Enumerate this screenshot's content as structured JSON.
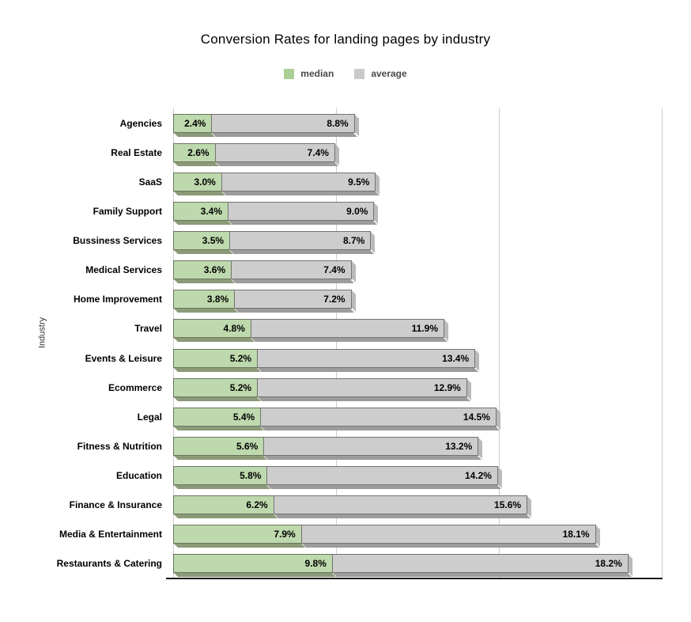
{
  "title": "Conversion Rates for landing pages by industry",
  "legend": {
    "position": "top",
    "items": [
      {
        "label": "median",
        "color": "#abd096"
      },
      {
        "label": "average",
        "color": "#c9c9c9"
      }
    ]
  },
  "colors": {
    "median_fill": "#bed9ad",
    "median_border": "#6a755d",
    "median_shadow": "#8b9a77",
    "average_fill": "#cdcdcd",
    "average_border": "#737373",
    "average_shadow": "#9c9c9c",
    "gridline": "#cccccc",
    "axis": "#1a1a1a"
  },
  "chart_data": {
    "type": "bar",
    "orientation": "horizontal",
    "stacked": true,
    "title": "Conversion Rates for landing pages by industry",
    "xlabel": "",
    "ylabel": "Industry",
    "xlim": [
      0,
      30
    ],
    "grid_x": [
      0,
      10,
      20,
      30
    ],
    "x_tick_labels_visible": false,
    "legend_position": "top",
    "categories": [
      "Agencies",
      "Real Estate",
      "SaaS",
      "Family Support",
      "Bussiness Services",
      "Medical Services",
      "Home Improvement",
      "Travel",
      "Events & Leisure",
      "Ecommerce",
      "Legal",
      "Fitness & Nutrition",
      "Education",
      "Finance & Insurance",
      "Media & Entertainment",
      "Restaurants & Catering"
    ],
    "series": [
      {
        "name": "median",
        "values": [
          2.4,
          2.6,
          3.0,
          3.4,
          3.5,
          3.6,
          3.8,
          4.8,
          5.2,
          5.2,
          5.4,
          5.6,
          5.8,
          6.2,
          7.9,
          9.8
        ],
        "labels": [
          "2.4%",
          "2.6%",
          "3.0%",
          "3.4%",
          "3.5%",
          "3.6%",
          "3.8%",
          "4.8%",
          "5.2%",
          "5.2%",
          "5.4%",
          "5.6%",
          "5.8%",
          "6.2%",
          "7.9%",
          "9.8%"
        ]
      },
      {
        "name": "average",
        "values": [
          8.8,
          7.4,
          9.5,
          9.0,
          8.7,
          7.4,
          7.2,
          11.9,
          13.4,
          12.9,
          14.5,
          13.2,
          14.2,
          15.6,
          18.1,
          18.2
        ],
        "labels": [
          "8.8%",
          "7.4%",
          "9.5%",
          "9.0%",
          "8.7%",
          "7.4%",
          "7.2%",
          "11.9%",
          "13.4%",
          "12.9%",
          "14.5%",
          "13.2%",
          "14.2%",
          "15.6%",
          "18.1%",
          "18.2%"
        ]
      }
    ]
  }
}
